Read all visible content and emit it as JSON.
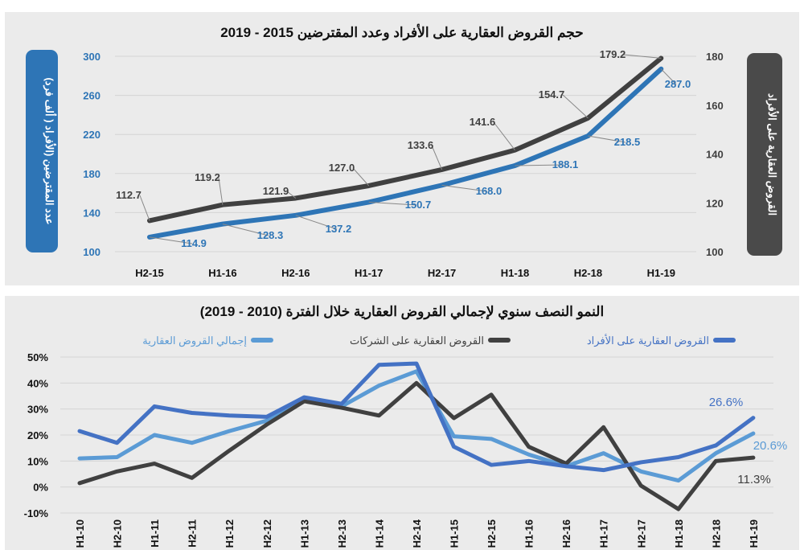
{
  "chart_data": [
    {
      "type": "line",
      "title": "حجم القروض العقارية على الأفراد وعدد المقترضين 2015 - 2019",
      "categories": [
        "H2-15",
        "H1-16",
        "H2-16",
        "H1-17",
        "H2-17",
        "H1-18",
        "H2-18",
        "H1-19"
      ],
      "y_left": {
        "label": "عدد المقترضين (الأفراد ( ألف فرد)",
        "range": [
          100,
          300
        ],
        "ticks": [
          "100",
          "140",
          "180",
          "220",
          "260",
          "300"
        ]
      },
      "y_right": {
        "label": "القروض العقارية على الأفراد",
        "range": [
          100,
          180
        ],
        "ticks": [
          "100",
          "120",
          "140",
          "160",
          "180"
        ]
      },
      "grid": true,
      "series": [
        {
          "axis": "right",
          "color": "#404040",
          "values": [
            112.7,
            119.2,
            121.9,
            127.0,
            133.6,
            141.6,
            154.7,
            179.2
          ],
          "labels": [
            "112.7",
            "119.2",
            "121.9",
            "127.0",
            "133.6",
            "141.6",
            "154.7",
            "179.2"
          ]
        },
        {
          "axis": "left",
          "color": "#2E75B6",
          "values": [
            114.9,
            128.3,
            137.2,
            150.7,
            168.0,
            188.1,
            218.5,
            287.0
          ],
          "labels": [
            "114.9",
            "128.3",
            "137.2",
            "150.7",
            "168.0",
            "188.1",
            "218.5",
            "287.0"
          ]
        }
      ]
    },
    {
      "type": "line",
      "title": "النمو النصف سنوي لإجمالي القروض العقارية خلال الفترة (2010 - 2019)",
      "categories": [
        "H1-10",
        "H2-10",
        "H1-11",
        "H2-11",
        "H1-12",
        "H2-12",
        "H1-13",
        "H2-13",
        "H1-14",
        "H2-14",
        "H1-15",
        "H2-15",
        "H1-16",
        "H2-16",
        "H1-17",
        "H2-17",
        "H1-18",
        "H2-18",
        "H1-19"
      ],
      "y_range": [
        -10,
        50
      ],
      "y_ticks": [
        "-10%",
        "0%",
        "10%",
        "20%",
        "30%",
        "40%",
        "50%"
      ],
      "grid": true,
      "legend_position": "top",
      "series": [
        {
          "name": "القروض العقارية على الأفراد",
          "color": "#4472C4",
          "values": [
            21.5,
            17,
            31,
            28.5,
            27.5,
            27,
            34.5,
            32,
            47,
            47.5,
            15.5,
            8.5,
            10,
            8,
            6.5,
            9.5,
            11.5,
            16,
            26.6
          ],
          "end_label": "26.6%"
        },
        {
          "name": "القروض العقارية على الشركات",
          "color": "#404040",
          "values": [
            1.5,
            6,
            9,
            3.5,
            14,
            24,
            33,
            30.5,
            27.5,
            40,
            26.5,
            35.5,
            15.5,
            9,
            23,
            0.5,
            -8.5,
            10,
            11.3
          ],
          "end_label": "11.3%"
        },
        {
          "name": "إجمالي القروض العقارية",
          "color": "#5B9BD5",
          "values": [
            11,
            11.5,
            20,
            17,
            21.5,
            25.5,
            33.5,
            31,
            39,
            44.5,
            19.5,
            18.5,
            12.5,
            8,
            13,
            6,
            2.5,
            13,
            20.6
          ],
          "end_label": "20.6%"
        }
      ]
    }
  ]
}
